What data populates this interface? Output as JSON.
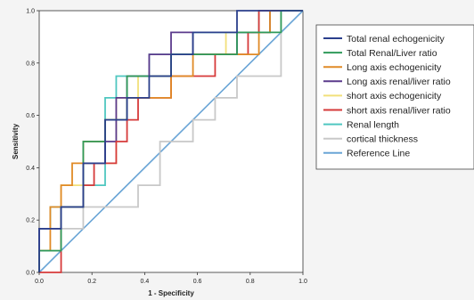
{
  "chart_data": {
    "type": "line",
    "xlabel": "1 - Specificity",
    "ylabel": "Sensitivity",
    "xlim": [
      0,
      1
    ],
    "ylim": [
      0,
      1
    ],
    "xticks": [
      "0.0",
      "0.2",
      "0.4",
      "0.6",
      "0.8",
      "1.0"
    ],
    "yticks": [
      "0.0",
      "0.2",
      "0.4",
      "0.6",
      "0.8",
      "1.0"
    ],
    "grid": false,
    "legend_position": "right",
    "series": [
      {
        "name": "Total renal echogenicity",
        "color": "#2b3f8c",
        "points": [
          [
            0,
            0
          ],
          [
            0,
            0.167
          ],
          [
            0.083,
            0.167
          ],
          [
            0.083,
            0.25
          ],
          [
            0.167,
            0.25
          ],
          [
            0.167,
            0.417
          ],
          [
            0.25,
            0.417
          ],
          [
            0.25,
            0.583
          ],
          [
            0.333,
            0.583
          ],
          [
            0.333,
            0.667
          ],
          [
            0.417,
            0.667
          ],
          [
            0.417,
            0.75
          ],
          [
            0.5,
            0.75
          ],
          [
            0.5,
            0.833
          ],
          [
            0.583,
            0.833
          ],
          [
            0.583,
            0.917
          ],
          [
            0.75,
            0.917
          ],
          [
            0.75,
            1
          ],
          [
            1,
            1
          ]
        ]
      },
      {
        "name": "Total Renal/Liver ratio",
        "color": "#2f9a5a",
        "points": [
          [
            0,
            0
          ],
          [
            0,
            0.083
          ],
          [
            0.083,
            0.083
          ],
          [
            0.083,
            0.25
          ],
          [
            0.167,
            0.25
          ],
          [
            0.167,
            0.5
          ],
          [
            0.25,
            0.5
          ],
          [
            0.25,
            0.583
          ],
          [
            0.333,
            0.583
          ],
          [
            0.333,
            0.75
          ],
          [
            0.5,
            0.75
          ],
          [
            0.5,
            0.833
          ],
          [
            0.75,
            0.833
          ],
          [
            0.75,
            0.917
          ],
          [
            0.917,
            0.917
          ],
          [
            0.917,
            1
          ],
          [
            1,
            1
          ]
        ]
      },
      {
        "name": "Long axis echogenicity",
        "color": "#e08a26",
        "points": [
          [
            0,
            0
          ],
          [
            0,
            0.083
          ],
          [
            0.042,
            0.083
          ],
          [
            0.042,
            0.25
          ],
          [
            0.083,
            0.25
          ],
          [
            0.083,
            0.333
          ],
          [
            0.125,
            0.333
          ],
          [
            0.125,
            0.417
          ],
          [
            0.167,
            0.417
          ],
          [
            0.167,
            0.5
          ],
          [
            0.25,
            0.5
          ],
          [
            0.25,
            0.583
          ],
          [
            0.333,
            0.583
          ],
          [
            0.333,
            0.667
          ],
          [
            0.5,
            0.667
          ],
          [
            0.5,
            0.75
          ],
          [
            0.583,
            0.75
          ],
          [
            0.583,
            0.833
          ],
          [
            0.833,
            0.833
          ],
          [
            0.833,
            0.917
          ],
          [
            0.875,
            0.917
          ],
          [
            0.875,
            1
          ],
          [
            1,
            1
          ]
        ]
      },
      {
        "name": "Long axis renal/liver ratio",
        "color": "#5b3a8c",
        "points": [
          [
            0,
            0
          ],
          [
            0,
            0.167
          ],
          [
            0.083,
            0.167
          ],
          [
            0.083,
            0.25
          ],
          [
            0.167,
            0.25
          ],
          [
            0.167,
            0.417
          ],
          [
            0.25,
            0.417
          ],
          [
            0.25,
            0.5
          ],
          [
            0.292,
            0.5
          ],
          [
            0.292,
            0.667
          ],
          [
            0.333,
            0.667
          ],
          [
            0.333,
            0.75
          ],
          [
            0.417,
            0.75
          ],
          [
            0.417,
            0.833
          ],
          [
            0.5,
            0.833
          ],
          [
            0.5,
            0.917
          ],
          [
            0.583,
            0.917
          ],
          [
            0.583,
            0.833
          ],
          [
            0.75,
            0.833
          ],
          [
            0.75,
            0.917
          ],
          [
            0.875,
            0.917
          ],
          [
            0.875,
            1
          ],
          [
            1,
            1
          ]
        ]
      },
      {
        "name": "short axis echogenicity",
        "color": "#f2e07a",
        "points": [
          [
            0,
            0
          ],
          [
            0,
            0.083
          ],
          [
            0.083,
            0.083
          ],
          [
            0.083,
            0.333
          ],
          [
            0.167,
            0.333
          ],
          [
            0.167,
            0.417
          ],
          [
            0.292,
            0.417
          ],
          [
            0.292,
            0.667
          ],
          [
            0.375,
            0.667
          ],
          [
            0.375,
            0.75
          ],
          [
            0.5,
            0.75
          ],
          [
            0.5,
            0.833
          ],
          [
            0.708,
            0.833
          ],
          [
            0.708,
            0.917
          ],
          [
            0.833,
            0.917
          ],
          [
            0.833,
            1
          ],
          [
            1,
            1
          ]
        ]
      },
      {
        "name": "short axis renal/liver ratio",
        "color": "#d63a3a",
        "points": [
          [
            0,
            0
          ],
          [
            0.083,
            0
          ],
          [
            0.083,
            0.25
          ],
          [
            0.167,
            0.25
          ],
          [
            0.167,
            0.333
          ],
          [
            0.208,
            0.333
          ],
          [
            0.208,
            0.417
          ],
          [
            0.292,
            0.417
          ],
          [
            0.292,
            0.5
          ],
          [
            0.333,
            0.5
          ],
          [
            0.333,
            0.583
          ],
          [
            0.375,
            0.583
          ],
          [
            0.375,
            0.667
          ],
          [
            0.5,
            0.667
          ],
          [
            0.5,
            0.75
          ],
          [
            0.667,
            0.75
          ],
          [
            0.667,
            0.833
          ],
          [
            0.792,
            0.833
          ],
          [
            0.792,
            0.917
          ],
          [
            0.833,
            0.917
          ],
          [
            0.833,
            1
          ],
          [
            1,
            1
          ]
        ]
      },
      {
        "name": "Renal length",
        "color": "#4fc7c0",
        "points": [
          [
            0,
            0
          ],
          [
            0,
            0.167
          ],
          [
            0.042,
            0.167
          ],
          [
            0.042,
            0.25
          ],
          [
            0.167,
            0.25
          ],
          [
            0.167,
            0.333
          ],
          [
            0.25,
            0.333
          ],
          [
            0.25,
            0.667
          ],
          [
            0.292,
            0.667
          ],
          [
            0.292,
            0.75
          ],
          [
            0.417,
            0.75
          ],
          [
            0.417,
            0.833
          ],
          [
            0.583,
            0.833
          ],
          [
            0.583,
            0.917
          ],
          [
            0.833,
            0.917
          ],
          [
            0.833,
            1
          ],
          [
            1,
            1
          ]
        ]
      },
      {
        "name": "cortical thickness",
        "color": "#c8c8c8",
        "points": [
          [
            0,
            0
          ],
          [
            0,
            0.083
          ],
          [
            0.083,
            0.083
          ],
          [
            0.083,
            0.167
          ],
          [
            0.167,
            0.167
          ],
          [
            0.167,
            0.25
          ],
          [
            0.375,
            0.25
          ],
          [
            0.375,
            0.333
          ],
          [
            0.458,
            0.333
          ],
          [
            0.458,
            0.5
          ],
          [
            0.583,
            0.5
          ],
          [
            0.583,
            0.583
          ],
          [
            0.667,
            0.583
          ],
          [
            0.667,
            0.667
          ],
          [
            0.75,
            0.667
          ],
          [
            0.75,
            0.75
          ],
          [
            0.917,
            0.75
          ],
          [
            0.917,
            1
          ],
          [
            1,
            1
          ]
        ]
      },
      {
        "name": "Reference Line",
        "color": "#6aa5d6",
        "points": [
          [
            0,
            0
          ],
          [
            1,
            1
          ]
        ]
      }
    ]
  }
}
